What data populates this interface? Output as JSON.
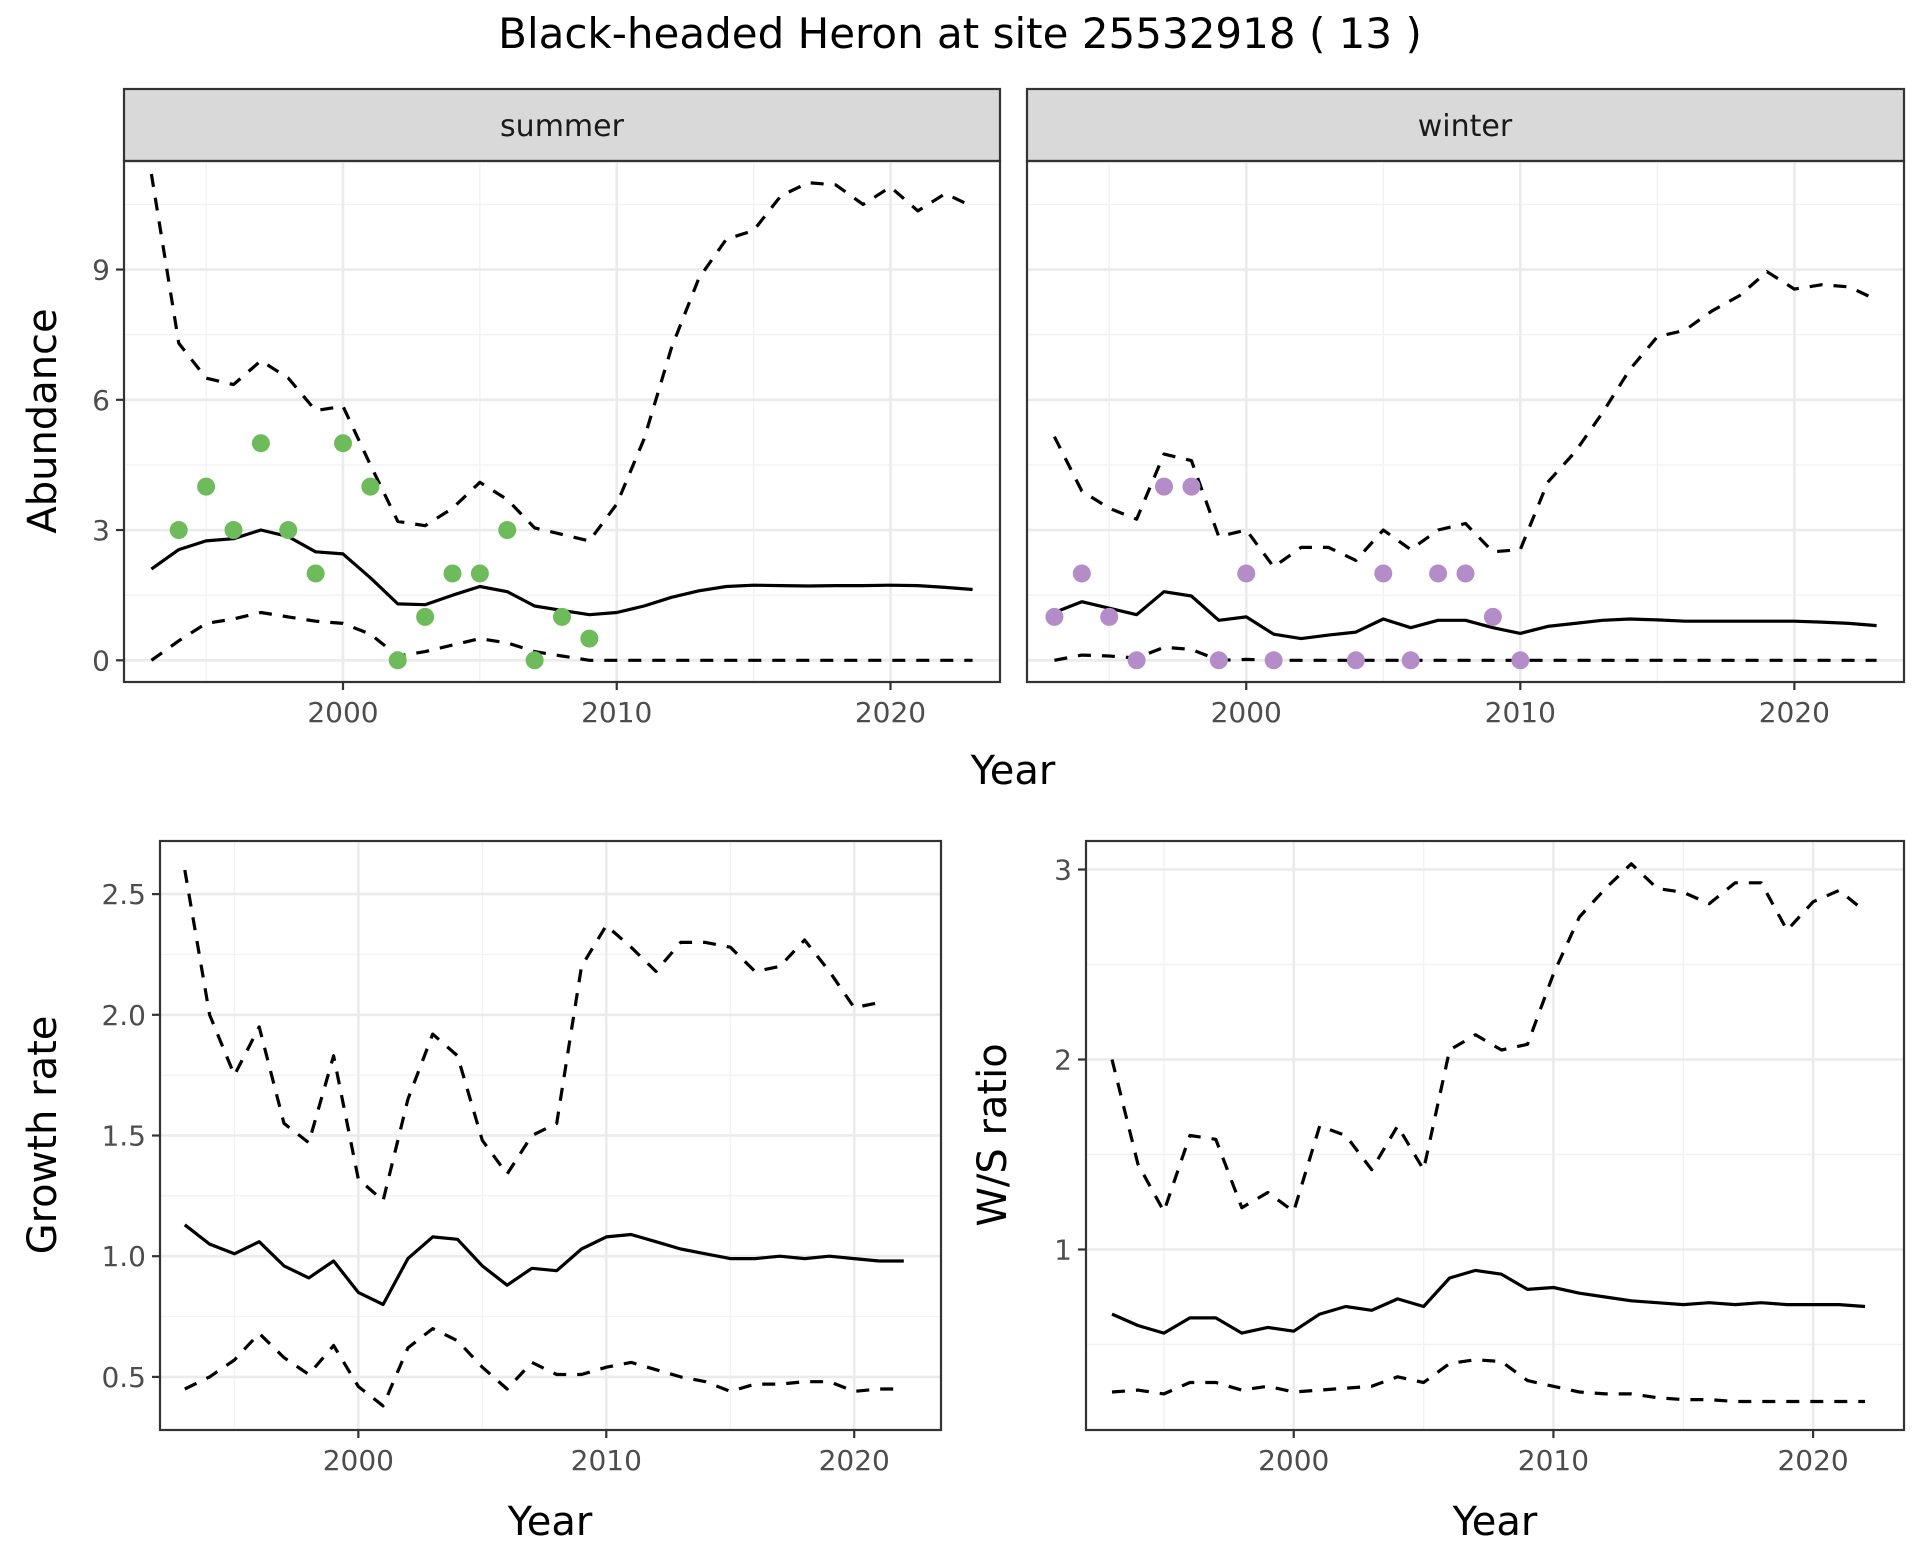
{
  "figure": {
    "title": "Black-headed Heron at site 25532918 ( 13 )"
  },
  "colors": {
    "summer_points": "#6dbb5a",
    "winter_points": "#b48cc8",
    "lines": "#000000"
  },
  "chart_data": [
    {
      "type": "line",
      "facet_strip": "summer",
      "xlabel": "Year",
      "ylabel": "Abundance",
      "xlim": [
        1992,
        2024
      ],
      "ylim": [
        -0.5,
        11.5
      ],
      "x_ticks": [
        2000,
        2010,
        2020
      ],
      "y_ticks": [
        0,
        3,
        6,
        9
      ],
      "grid": true,
      "x": [
        1993,
        1994,
        1995,
        1996,
        1997,
        1998,
        1999,
        2000,
        2001,
        2002,
        2003,
        2004,
        2005,
        2006,
        2007,
        2008,
        2009,
        2010,
        2011,
        2012,
        2013,
        2014,
        2015,
        2016,
        2017,
        2018,
        2019,
        2020,
        2021,
        2022,
        2023
      ],
      "series": [
        {
          "style": "solid",
          "values": [
            2.1,
            2.55,
            2.75,
            2.8,
            3.0,
            2.85,
            2.5,
            2.45,
            1.9,
            1.3,
            1.28,
            1.5,
            1.7,
            1.58,
            1.25,
            1.15,
            1.05,
            1.1,
            1.25,
            1.45,
            1.6,
            1.7,
            1.73,
            1.72,
            1.71,
            1.72,
            1.72,
            1.73,
            1.72,
            1.68,
            1.63
          ]
        },
        {
          "style": "dashed",
          "values": [
            11.2,
            7.3,
            6.5,
            6.35,
            6.9,
            6.5,
            5.75,
            5.85,
            4.5,
            3.2,
            3.1,
            3.5,
            4.1,
            3.7,
            3.05,
            2.9,
            2.75,
            3.6,
            5.1,
            7.2,
            8.8,
            9.7,
            9.9,
            10.7,
            11.0,
            10.95,
            10.5,
            10.9,
            10.35,
            10.75,
            10.45
          ]
        },
        {
          "style": "dashed",
          "values": [
            0.0,
            0.45,
            0.85,
            0.95,
            1.1,
            1.0,
            0.9,
            0.85,
            0.6,
            0.1,
            0.2,
            0.35,
            0.5,
            0.4,
            0.2,
            0.1,
            0.0,
            0.0,
            0.0,
            0.0,
            0.0,
            0.0,
            0.0,
            0.0,
            0.0,
            0.0,
            0.0,
            0.0,
            0.0,
            0.0,
            0.0
          ]
        }
      ],
      "points": {
        "x": [
          1994,
          1995,
          1996,
          1997,
          1998,
          1999,
          2000,
          2001,
          2002,
          2003,
          2004,
          2005,
          2006,
          2007,
          2008,
          2009
        ],
        "y": [
          3,
          4,
          3,
          5,
          3,
          2,
          5,
          4,
          0,
          1,
          2,
          2,
          3,
          0,
          1,
          0.5
        ]
      }
    },
    {
      "type": "line",
      "facet_strip": "winter",
      "xlabel": "Year",
      "ylabel": "",
      "xlim": [
        1992,
        2024
      ],
      "ylim": [
        -0.5,
        11.5
      ],
      "x_ticks": [
        2000,
        2010,
        2020
      ],
      "y_ticks": [
        0,
        3,
        6,
        9
      ],
      "grid": true,
      "x": [
        1993,
        1994,
        1995,
        1996,
        1997,
        1998,
        1999,
        2000,
        2001,
        2002,
        2003,
        2004,
        2005,
        2006,
        2007,
        2008,
        2009,
        2010,
        2011,
        2012,
        2013,
        2014,
        2015,
        2016,
        2017,
        2018,
        2019,
        2020,
        2021,
        2022,
        2023
      ],
      "series": [
        {
          "style": "solid",
          "values": [
            1.1,
            1.35,
            1.2,
            1.05,
            1.58,
            1.48,
            0.92,
            1.0,
            0.6,
            0.5,
            0.58,
            0.65,
            0.95,
            0.75,
            0.92,
            0.92,
            0.75,
            0.62,
            0.78,
            0.85,
            0.92,
            0.95,
            0.93,
            0.9,
            0.9,
            0.9,
            0.9,
            0.9,
            0.88,
            0.85,
            0.8
          ]
        },
        {
          "style": "dashed",
          "values": [
            5.15,
            3.9,
            3.5,
            3.25,
            4.75,
            4.6,
            2.85,
            3.0,
            2.15,
            2.6,
            2.6,
            2.3,
            3.0,
            2.55,
            3.0,
            3.15,
            2.5,
            2.55,
            4.1,
            4.8,
            5.7,
            6.7,
            7.45,
            7.6,
            8.05,
            8.4,
            8.95,
            8.55,
            8.65,
            8.6,
            8.3
          ]
        },
        {
          "style": "dashed",
          "values": [
            0.0,
            0.12,
            0.1,
            0.05,
            0.3,
            0.25,
            0.0,
            0.02,
            0.0,
            0.0,
            0.0,
            0.0,
            0.0,
            0.0,
            0.0,
            0.0,
            0.0,
            0.0,
            0.0,
            0.0,
            0.0,
            0.0,
            0.0,
            0.0,
            0.0,
            0.0,
            0.0,
            0.0,
            0.0,
            0.0,
            0.0
          ]
        }
      ],
      "points": {
        "x": [
          1993,
          1994,
          1995,
          1996,
          1997,
          1998,
          1999,
          2000,
          2001,
          2004,
          2005,
          2006,
          2007,
          2008,
          2009,
          2010
        ],
        "y": [
          1,
          2,
          1,
          0,
          4,
          4,
          0,
          2,
          0,
          0,
          2,
          0,
          2,
          2,
          1,
          0
        ]
      }
    },
    {
      "type": "line",
      "xlabel": "Year",
      "ylabel": "Growth rate",
      "xlim": [
        1992,
        2023.5
      ],
      "ylim": [
        0.28,
        2.72
      ],
      "x_ticks": [
        2000,
        2010,
        2020
      ],
      "y_ticks": [
        0.5,
        1.0,
        1.5,
        2.0,
        2.5
      ],
      "y_tick_labels": [
        "0.5",
        "1.0",
        "1.5",
        "2.0",
        "2.5"
      ],
      "grid": true,
      "x": [
        1993,
        1994,
        1995,
        1996,
        1997,
        1998,
        1999,
        2000,
        2001,
        2002,
        2003,
        2004,
        2005,
        2006,
        2007,
        2008,
        2009,
        2010,
        2011,
        2012,
        2013,
        2014,
        2015,
        2016,
        2017,
        2018,
        2019,
        2020,
        2021,
        2022
      ],
      "series": [
        {
          "style": "solid",
          "values": [
            1.13,
            1.05,
            1.01,
            1.06,
            0.96,
            0.91,
            0.98,
            0.85,
            0.8,
            0.99,
            1.08,
            1.07,
            0.96,
            0.88,
            0.95,
            0.94,
            1.03,
            1.08,
            1.09,
            1.06,
            1.03,
            1.01,
            0.99,
            0.99,
            1.0,
            0.99,
            1.0,
            0.99,
            0.98,
            0.98
          ]
        },
        {
          "style": "dashed",
          "values": [
            2.6,
            2.0,
            1.75,
            1.95,
            1.55,
            1.47,
            1.83,
            1.32,
            1.23,
            1.65,
            1.92,
            1.83,
            1.48,
            1.34,
            1.5,
            1.55,
            2.2,
            2.37,
            2.28,
            2.18,
            2.3,
            2.3,
            2.28,
            2.18,
            2.2,
            2.31,
            2.18,
            2.03,
            2.05,
            null
          ]
        },
        {
          "style": "dashed",
          "values": [
            0.45,
            0.5,
            0.57,
            0.68,
            0.58,
            0.51,
            0.63,
            0.46,
            0.38,
            0.62,
            0.7,
            0.65,
            0.54,
            0.45,
            0.56,
            0.51,
            0.51,
            0.54,
            0.56,
            0.53,
            0.5,
            0.48,
            0.44,
            0.47,
            0.47,
            0.48,
            0.48,
            0.44,
            0.45,
            0.45
          ]
        }
      ]
    },
    {
      "type": "line",
      "xlabel": "Year",
      "ylabel": "W/S ratio",
      "xlim": [
        1992,
        2023.5
      ],
      "ylim": [
        0.05,
        3.15
      ],
      "x_ticks": [
        2000,
        2010,
        2020
      ],
      "y_ticks": [
        1,
        2,
        3
      ],
      "grid": true,
      "x": [
        1993,
        1994,
        1995,
        1996,
        1997,
        1998,
        1999,
        2000,
        2001,
        2002,
        2003,
        2004,
        2005,
        2006,
        2007,
        2008,
        2009,
        2010,
        2011,
        2012,
        2013,
        2014,
        2015,
        2016,
        2017,
        2018,
        2019,
        2020,
        2021,
        2022
      ],
      "series": [
        {
          "style": "solid",
          "values": [
            0.66,
            0.6,
            0.56,
            0.64,
            0.64,
            0.56,
            0.59,
            0.57,
            0.66,
            0.7,
            0.68,
            0.74,
            0.7,
            0.85,
            0.89,
            0.87,
            0.79,
            0.8,
            0.77,
            0.75,
            0.73,
            0.72,
            0.71,
            0.72,
            0.71,
            0.72,
            0.71,
            0.71,
            0.71,
            0.7
          ]
        },
        {
          "style": "dashed",
          "values": [
            2.0,
            1.45,
            1.2,
            1.6,
            1.58,
            1.22,
            1.3,
            1.2,
            1.65,
            1.6,
            1.42,
            1.65,
            1.42,
            2.05,
            2.13,
            2.05,
            2.08,
            2.45,
            2.75,
            2.9,
            3.03,
            2.9,
            2.88,
            2.82,
            2.93,
            2.93,
            2.68,
            2.83,
            2.89,
            2.78
          ]
        },
        {
          "style": "dashed",
          "values": [
            0.25,
            0.26,
            0.24,
            0.3,
            0.3,
            0.26,
            0.28,
            0.25,
            0.26,
            0.27,
            0.28,
            0.33,
            0.3,
            0.4,
            0.42,
            0.41,
            0.31,
            0.28,
            0.25,
            0.24,
            0.24,
            0.22,
            0.21,
            0.21,
            0.2,
            0.2,
            0.2,
            0.2,
            0.2,
            0.2
          ]
        }
      ]
    }
  ]
}
